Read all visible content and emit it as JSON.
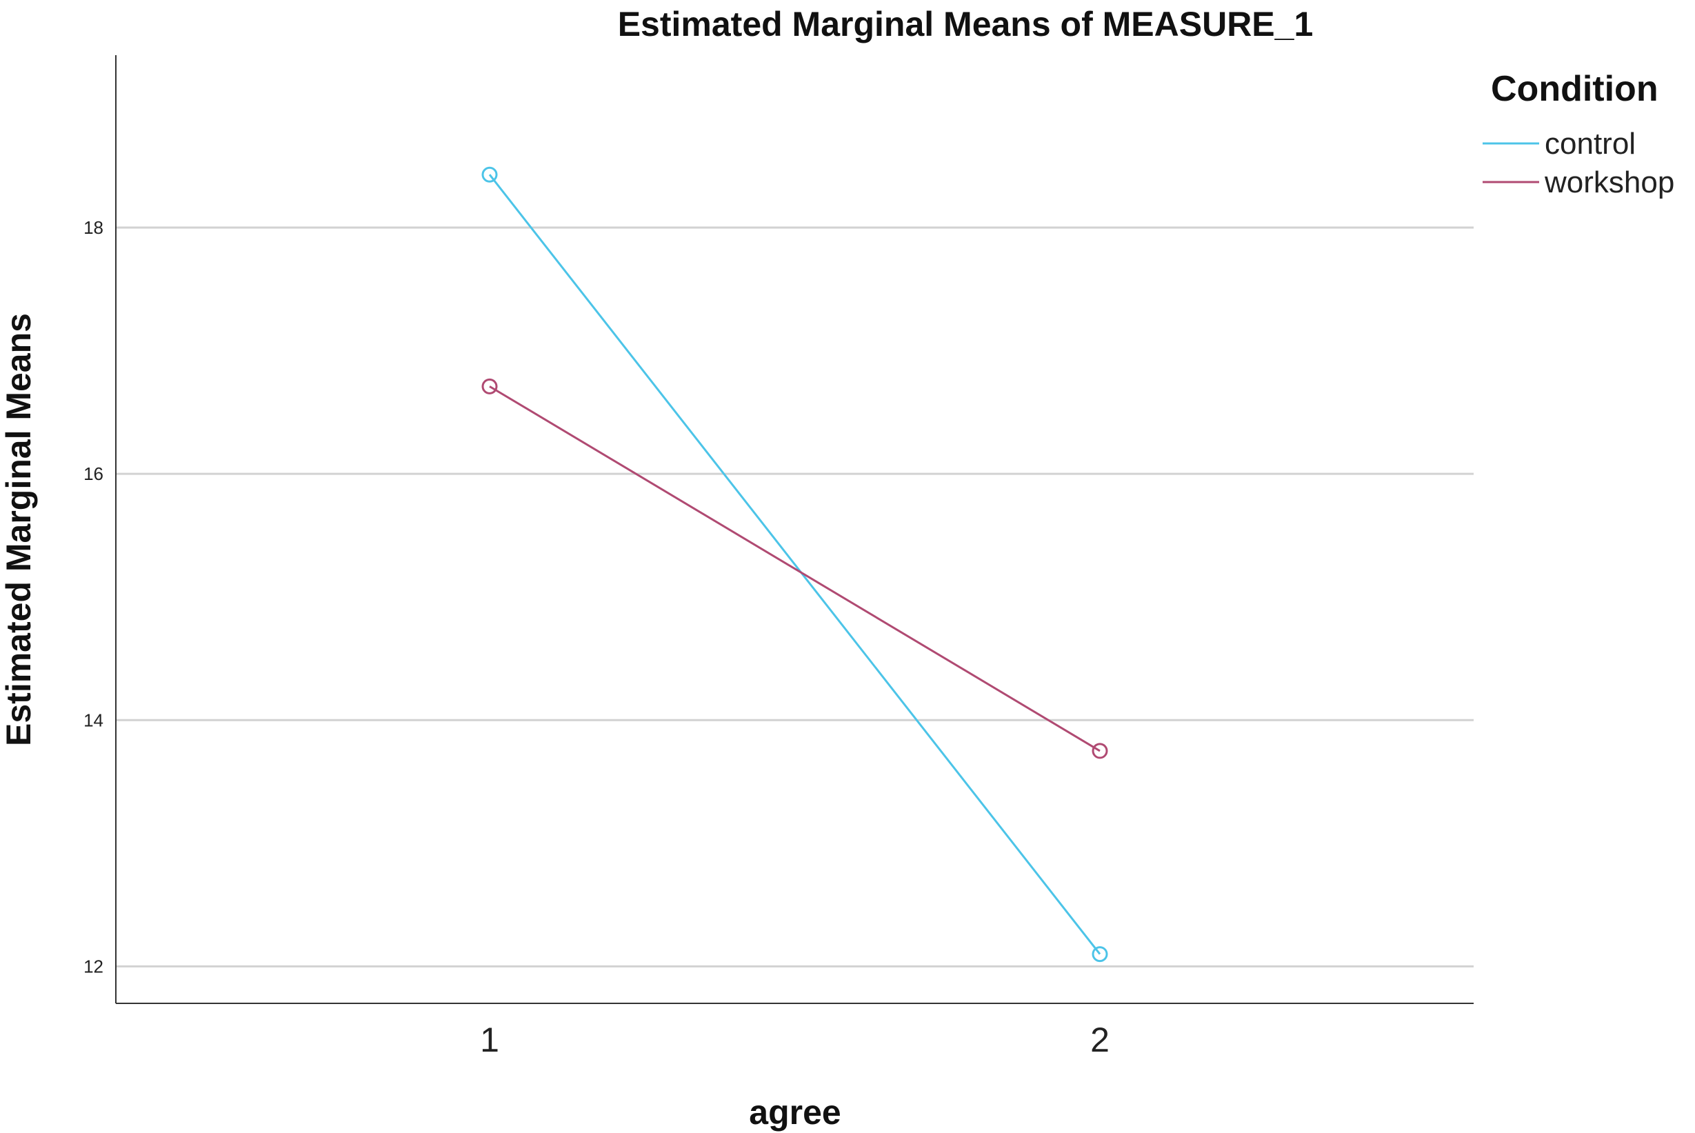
{
  "chart_data": {
    "type": "line",
    "title": "Estimated Marginal Means of MEASURE_1",
    "xlabel": "agree",
    "ylabel": "Estimated Marginal Means",
    "categories": [
      "1",
      "2"
    ],
    "ylim": [
      11.7,
      19.4
    ],
    "yticks": [
      12,
      14,
      16,
      18
    ],
    "grid": true,
    "legend": {
      "title": "Condition",
      "position": "top-right"
    },
    "series": [
      {
        "name": "control",
        "values": [
          18.43,
          12.1
        ],
        "color": "#4cc4e8"
      },
      {
        "name": "workshop",
        "values": [
          16.71,
          13.75
        ],
        "color": "#b04a72"
      }
    ]
  }
}
